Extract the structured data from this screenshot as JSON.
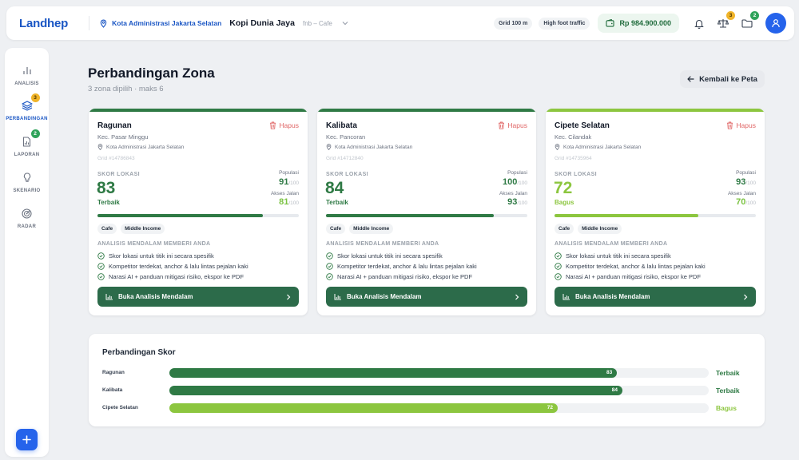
{
  "app": {
    "logo": "Landhep"
  },
  "topbar": {
    "city": "Kota Administrasi Jakarta Selatan",
    "business": "Kopi Dunia Jaya",
    "category": "fnb – Cafe",
    "pill_grid": "Grid 100 m",
    "pill_traffic": "High foot traffic",
    "balance": "Rp 984.900.000",
    "compare_badge": "3",
    "folder_badge": "2",
    "icons": [
      "location-pin-icon",
      "chevron-down-icon",
      "wallet-icon",
      "bell-icon",
      "scale-icon",
      "folder-icon",
      "user-icon"
    ]
  },
  "sidebar": {
    "items": [
      {
        "label": "ANALISIS",
        "icon": "bar-chart-icon",
        "active": false,
        "badge": ""
      },
      {
        "label": "PERBANDINGAN",
        "icon": "layers-icon",
        "active": true,
        "badge": "3"
      },
      {
        "label": "LAPORAN",
        "icon": "report-icon",
        "active": false,
        "badge": "2"
      },
      {
        "label": "SKENARIO",
        "icon": "lightbulb-icon",
        "active": false,
        "badge": ""
      },
      {
        "label": "RADAR",
        "icon": "radar-icon",
        "active": false,
        "badge": ""
      }
    ],
    "fab": "+"
  },
  "header": {
    "title": "Perbandingan Zona",
    "subtitle": "3 zona dipilih · maks 6",
    "back_label": "Kembali ke Peta"
  },
  "labels": {
    "delete": "Hapus",
    "score": "SKOR LOKASI",
    "population": "Populasi",
    "road_access": "Akses Jalan",
    "per_100": "/100",
    "deep_heading": "ANALISIS MENDALAM MEMBERI ANDA",
    "cta": "Buka Analisis Mendalam"
  },
  "features": [
    "Skor lokasi untuk titik ini secara spesifik",
    "Kompetitor terdekat, anchor & lalu lintas pejalan kaki",
    "Narasi AI + panduan mitigasi risiko, ekspor ke PDF"
  ],
  "zones": [
    {
      "name": "Ragunan",
      "kec": "Kec. Pasar Minggu",
      "city": "Kota Administrasi Jakarta Selatan",
      "grid": "Grid #14786843",
      "score": "83",
      "score_num": 83,
      "tier": "Terbaik",
      "population": "91",
      "access": "81",
      "tags": [
        "Cafe",
        "Middle Income"
      ],
      "color": "#2f7a45",
      "access_color": "#7bc342"
    },
    {
      "name": "Kalibata",
      "kec": "Kec. Pancoran",
      "city": "Kota Administrasi Jakarta Selatan",
      "grid": "Grid #14712840",
      "score": "84",
      "score_num": 84,
      "tier": "Terbaik",
      "population": "100",
      "access": "93",
      "tags": [
        "Cafe",
        "Middle Income"
      ],
      "color": "#2f7a45",
      "access_color": "#2f7a45"
    },
    {
      "name": "Cipete Selatan",
      "kec": "Kec. Cilandak",
      "city": "Kota Administrasi Jakarta Selatan",
      "grid": "Grid #14735964",
      "score": "72",
      "score_num": 72,
      "tier": "Bagus",
      "population": "93",
      "access": "70",
      "tags": [
        "Cafe",
        "Middle Income"
      ],
      "color": "#8cc63f",
      "access_color": "#7bc342"
    }
  ],
  "comparison": {
    "title": "Perbandingan Skor",
    "rows": [
      {
        "name": "Ragunan",
        "value": "83",
        "value_num": 83,
        "tier": "Terbaik",
        "color": "#2f7a45"
      },
      {
        "name": "Kalibata",
        "value": "84",
        "value_num": 84,
        "tier": "Terbaik",
        "color": "#2f7a45"
      },
      {
        "name": "Cipete Selatan",
        "value": "72",
        "value_num": 72,
        "tier": "Bagus",
        "color": "#8cc63f"
      }
    ]
  },
  "colors": {
    "brand": "#1a56c4",
    "primary": "#2563eb",
    "cta": "#2c6b4a",
    "delete": "#e06666"
  }
}
